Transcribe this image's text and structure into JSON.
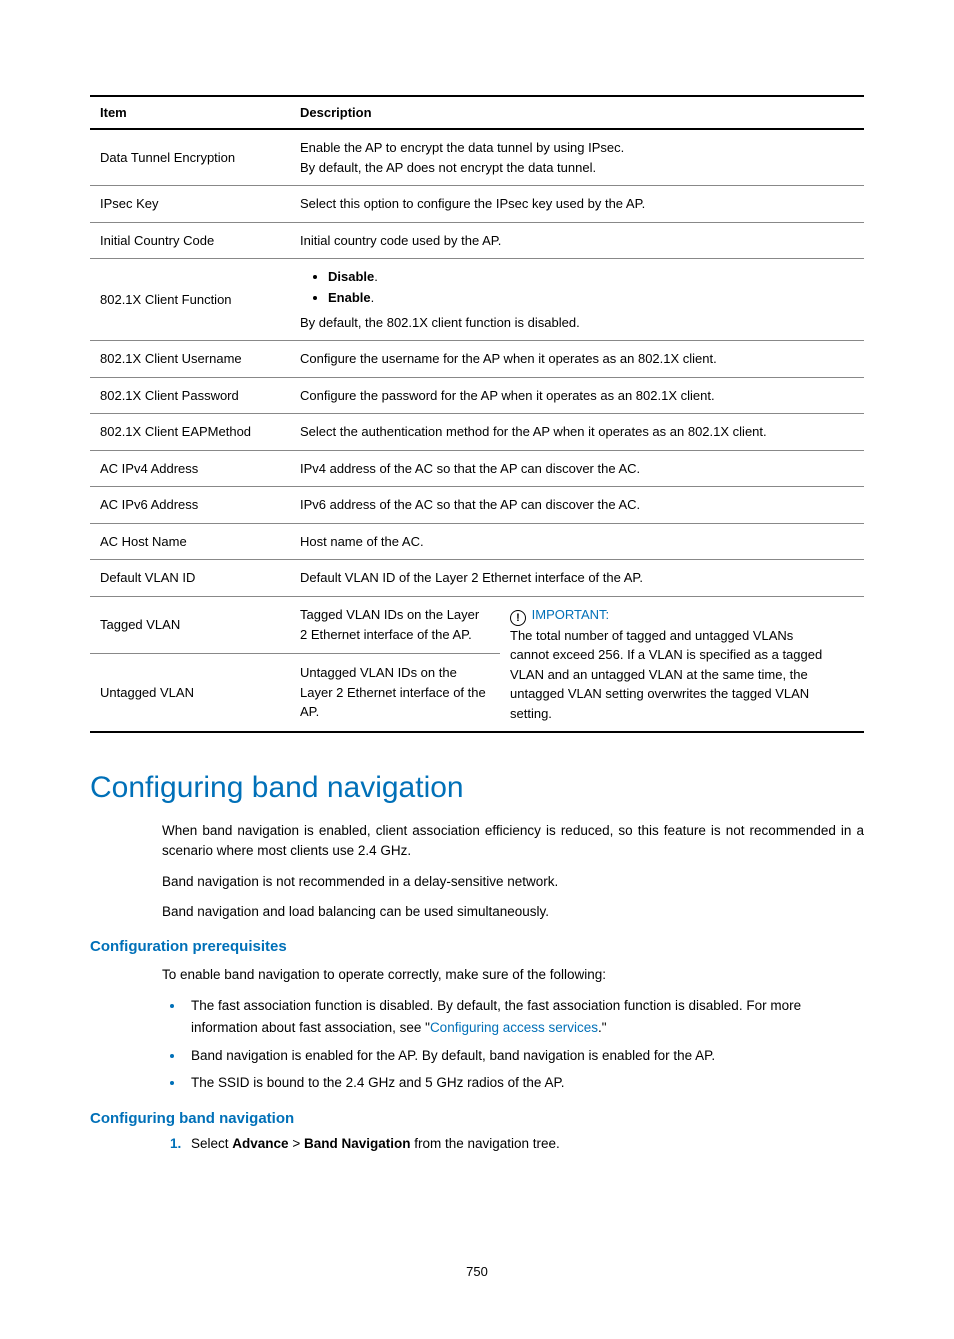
{
  "table": {
    "headers": {
      "item": "Item",
      "description": "Description"
    },
    "rows": {
      "dataTunnel": {
        "item": "Data Tunnel Encryption",
        "line1": "Enable the AP to encrypt the data tunnel by using IPsec.",
        "line2": "By default, the AP does not encrypt the data tunnel."
      },
      "ipsecKey": {
        "item": "IPsec Key",
        "desc": "Select this option to configure the IPsec key used by the AP."
      },
      "country": {
        "item": "Initial Country Code",
        "desc": "Initial country code used by the AP."
      },
      "clientFunc": {
        "item": "802.1X Client Function",
        "opt1": "Disable",
        "opt2": "Enable",
        "tail": "By default, the 802.1X client function is disabled."
      },
      "clientUser": {
        "item": "802.1X Client Username",
        "desc": "Configure the username for the AP when it operates as an 802.1X client."
      },
      "clientPass": {
        "item": "802.1X Client Password",
        "desc": "Configure the password for the AP when it operates as an 802.1X client."
      },
      "eap": {
        "item": "802.1X Client EAPMethod",
        "desc": "Select the authentication method for the AP when it operates as an 802.1X client."
      },
      "ipv4": {
        "item": "AC IPv4 Address",
        "desc": "IPv4 address of the AC so that the AP can discover the AC."
      },
      "ipv6": {
        "item": "AC IPv6 Address",
        "desc": "IPv6 address of the AC so that the AP can discover the AC."
      },
      "host": {
        "item": "AC Host Name",
        "desc": "Host name of the AC."
      },
      "defVlan": {
        "item": "Default VLAN ID",
        "desc": "Default VLAN ID of the Layer 2 Ethernet interface of the AP."
      },
      "tagged": {
        "item": "Tagged VLAN",
        "desc": "Tagged VLAN IDs on the Layer 2 Ethernet interface of the AP."
      },
      "untagged": {
        "item": "Untagged VLAN",
        "desc": "Untagged VLAN IDs on the Layer 2 Ethernet interface of the AP."
      },
      "important": {
        "label": "IMPORTANT:",
        "line1": "The total number of tagged and untagged VLANs",
        "line2": "cannot exceed 256. If a VLAN is specified as a tagged VLAN and an untagged VLAN at the same time, the untagged VLAN setting overwrites the tagged VLAN setting."
      }
    }
  },
  "section": {
    "title": "Configuring band navigation",
    "p1": "When band navigation is enabled, client association efficiency is reduced, so this feature is not recommended in a scenario where most clients use 2.4 GHz.",
    "p2": "Band navigation is not recommended in a delay-sensitive network.",
    "p3": "Band navigation and load balancing can be used simultaneously.",
    "prereqTitle": "Configuration prerequisites",
    "prereqIntro": "To enable band navigation to operate correctly, make sure of the following:",
    "bul1a": "The fast association function is disabled. By default, the fast association function is disabled. For more information about fast association, see \"",
    "bul1link": "Configuring access services",
    "bul1b": ".\"",
    "bul2": "Band navigation is enabled for the AP. By default, band navigation is enabled for the AP.",
    "bul3": "The SSID is bound to the 2.4 GHz and 5 GHz radios of the AP.",
    "confTitle": "Configuring band navigation",
    "step1a": "Select ",
    "step1b": "Advance",
    "step1c": " > ",
    "step1d": "Band Navigation",
    "step1e": " from the navigation tree."
  },
  "pageNumber": "750"
}
